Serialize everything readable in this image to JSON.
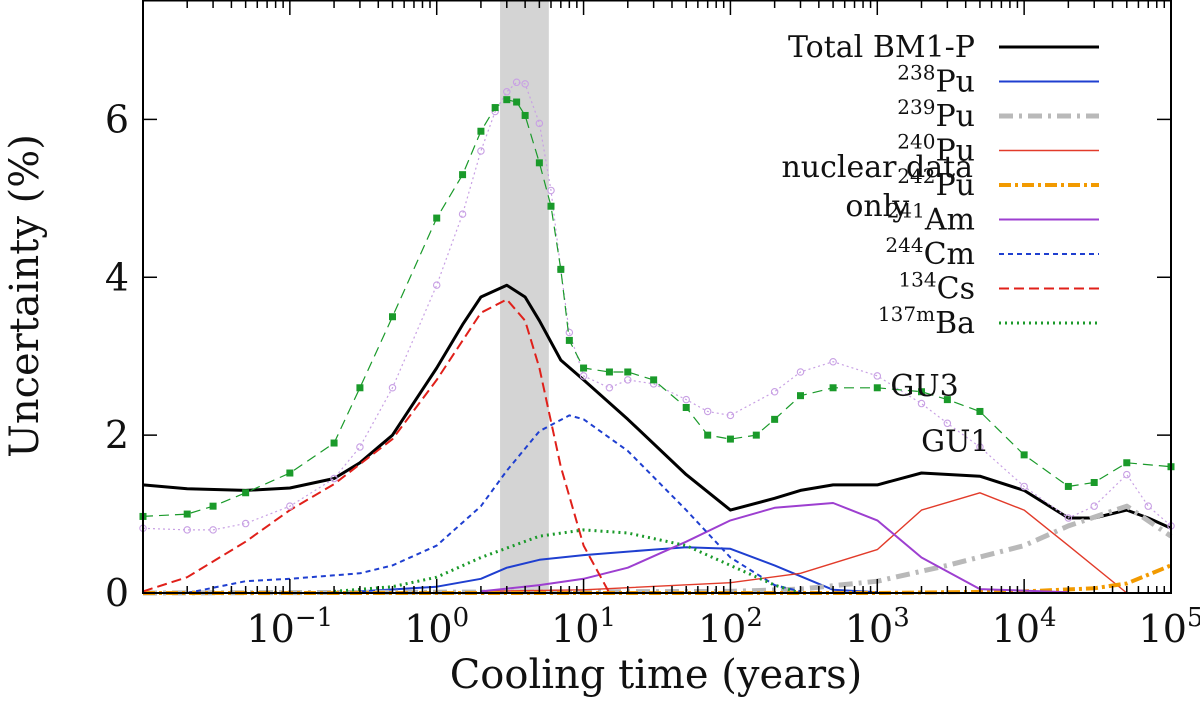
{
  "chart_data": {
    "type": "line",
    "xlabel": "Cooling time (years)",
    "ylabel": "Uncertainty (%)",
    "xscale": "log",
    "xlim": [
      0.01,
      100000
    ],
    "ylim": [
      0,
      7.5
    ],
    "grid": false,
    "legend_position": "top-right",
    "x_tick_labels": [
      {
        "value": 0.1,
        "base": "10",
        "exp": "−1"
      },
      {
        "value": 1,
        "base": "10",
        "exp": "0"
      },
      {
        "value": 10,
        "base": "10",
        "exp": "1"
      },
      {
        "value": 100,
        "base": "10",
        "exp": "2"
      },
      {
        "value": 1000,
        "base": "10",
        "exp": "3"
      },
      {
        "value": 10000,
        "base": "10",
        "exp": "4"
      },
      {
        "value": 100000,
        "base": "10",
        "exp": "5"
      }
    ],
    "y_ticks": [
      0,
      2,
      4,
      6
    ],
    "shaded_band": {
      "x": [
        2.7,
        5.8
      ],
      "color": "#d4d4d4"
    },
    "annotations": [
      {
        "text": "nuclear data",
        "x": 1000,
        "y": 5.4
      },
      {
        "text": "only",
        "x": 1000,
        "y": 4.9
      },
      {
        "text": "GU3",
        "x": 2100,
        "y": 2.62
      },
      {
        "text": "GU1",
        "x": 3400,
        "y": 1.92
      }
    ],
    "series": [
      {
        "name": "Total BM1-P",
        "sup": "",
        "base": "Total BM1-P",
        "color": "#000000",
        "width": 3,
        "dash": "",
        "legend": true,
        "points": [
          [
            0.01,
            1.37
          ],
          [
            0.02,
            1.32
          ],
          [
            0.05,
            1.3
          ],
          [
            0.1,
            1.33
          ],
          [
            0.2,
            1.45
          ],
          [
            0.3,
            1.65
          ],
          [
            0.5,
            2.0
          ],
          [
            1.0,
            2.85
          ],
          [
            1.5,
            3.4
          ],
          [
            2.0,
            3.75
          ],
          [
            3.0,
            3.9
          ],
          [
            4.0,
            3.75
          ],
          [
            5.0,
            3.45
          ],
          [
            7.0,
            2.95
          ],
          [
            10,
            2.7
          ],
          [
            20,
            2.2
          ],
          [
            50,
            1.5
          ],
          [
            100,
            1.05
          ],
          [
            200,
            1.2
          ],
          [
            300,
            1.3
          ],
          [
            500,
            1.37
          ],
          [
            1000,
            1.37
          ],
          [
            2000,
            1.52
          ],
          [
            5000,
            1.48
          ],
          [
            10000,
            1.3
          ],
          [
            20000,
            0.95
          ],
          [
            30000,
            0.95
          ],
          [
            50000,
            1.05
          ],
          [
            70000,
            0.95
          ],
          [
            100000,
            0.82
          ]
        ]
      },
      {
        "name": "238Pu",
        "sup": "238",
        "base": "Pu",
        "color": "#1f3fd0",
        "width": 2,
        "dash": "",
        "legend": true,
        "points": [
          [
            0.3,
            0.02
          ],
          [
            1,
            0.08
          ],
          [
            2,
            0.18
          ],
          [
            3,
            0.32
          ],
          [
            5,
            0.42
          ],
          [
            10,
            0.48
          ],
          [
            30,
            0.55
          ],
          [
            50,
            0.58
          ],
          [
            100,
            0.56
          ],
          [
            200,
            0.35
          ],
          [
            500,
            0.04
          ],
          [
            1000,
            0.01
          ]
        ]
      },
      {
        "name": "239Pu",
        "sup": "239",
        "base": "Pu",
        "color": "#b9b9b9",
        "width": 5,
        "dash": "14 6 3 6",
        "legend": true,
        "points": [
          [
            0.01,
            0.0
          ],
          [
            100,
            0.02
          ],
          [
            300,
            0.05
          ],
          [
            1000,
            0.15
          ],
          [
            3000,
            0.35
          ],
          [
            10000,
            0.6
          ],
          [
            20000,
            0.85
          ],
          [
            50000,
            1.1
          ],
          [
            100000,
            0.72
          ]
        ]
      },
      {
        "name": "240Pu",
        "sup": "240",
        "base": "Pu",
        "color": "#e23b2a",
        "width": 1.4,
        "dash": "",
        "legend": true,
        "points": [
          [
            2,
            0.02
          ],
          [
            10,
            0.04
          ],
          [
            100,
            0.13
          ],
          [
            300,
            0.25
          ],
          [
            1000,
            0.55
          ],
          [
            2000,
            1.05
          ],
          [
            5000,
            1.27
          ],
          [
            10000,
            1.05
          ],
          [
            20000,
            0.6
          ],
          [
            50000,
            0.0
          ]
        ]
      },
      {
        "name": "242Pu",
        "sup": "242",
        "base": "Pu",
        "color": "#f29a00",
        "width": 4,
        "dash": "12 4 3 4",
        "legend": true,
        "points": [
          [
            0.01,
            0.0
          ],
          [
            1000,
            0.0
          ],
          [
            10000,
            0.02
          ],
          [
            30000,
            0.06
          ],
          [
            50000,
            0.12
          ],
          [
            100000,
            0.35
          ]
        ]
      },
      {
        "name": "241Am",
        "sup": "241",
        "base": "Am",
        "color": "#9d3fd0",
        "width": 2,
        "dash": "",
        "legend": true,
        "points": [
          [
            2,
            0.02
          ],
          [
            5,
            0.1
          ],
          [
            10,
            0.18
          ],
          [
            20,
            0.32
          ],
          [
            50,
            0.65
          ],
          [
            100,
            0.92
          ],
          [
            200,
            1.08
          ],
          [
            500,
            1.14
          ],
          [
            1000,
            0.92
          ],
          [
            2000,
            0.45
          ],
          [
            5000,
            0.05
          ],
          [
            20000,
            0.01
          ]
        ]
      },
      {
        "name": "244Cm",
        "sup": "244",
        "base": "Cm",
        "color": "#1f3fd0",
        "width": 2,
        "dash": "5 4",
        "legend": true,
        "points": [
          [
            0.02,
            0.0
          ],
          [
            0.05,
            0.15
          ],
          [
            0.1,
            0.18
          ],
          [
            0.3,
            0.25
          ],
          [
            0.5,
            0.35
          ],
          [
            1,
            0.6
          ],
          [
            2,
            1.1
          ],
          [
            3,
            1.55
          ],
          [
            5,
            2.05
          ],
          [
            8,
            2.25
          ],
          [
            10,
            2.2
          ],
          [
            20,
            1.8
          ],
          [
            50,
            1.05
          ],
          [
            100,
            0.45
          ],
          [
            200,
            0.1
          ],
          [
            300,
            0.02
          ]
        ]
      },
      {
        "name": "134Cs",
        "sup": "134",
        "base": "Cs",
        "color": "#e0201a",
        "width": 2,
        "dash": "10 5",
        "legend": true,
        "points": [
          [
            0.01,
            0.02
          ],
          [
            0.02,
            0.2
          ],
          [
            0.05,
            0.65
          ],
          [
            0.1,
            1.05
          ],
          [
            0.2,
            1.38
          ],
          [
            0.5,
            1.95
          ],
          [
            1,
            2.7
          ],
          [
            2,
            3.55
          ],
          [
            3,
            3.72
          ],
          [
            4,
            3.45
          ],
          [
            5,
            2.85
          ],
          [
            7,
            1.6
          ],
          [
            10,
            0.6
          ],
          [
            15,
            0.0
          ]
        ]
      },
      {
        "name": "137mBa",
        "sup": "137m",
        "base": "Ba",
        "color": "#1a9a2a",
        "width": 3,
        "dash": "2 4",
        "legend": true,
        "points": [
          [
            0.2,
            0.02
          ],
          [
            0.5,
            0.08
          ],
          [
            1,
            0.2
          ],
          [
            2,
            0.45
          ],
          [
            5,
            0.72
          ],
          [
            10,
            0.8
          ],
          [
            20,
            0.76
          ],
          [
            50,
            0.6
          ],
          [
            100,
            0.35
          ],
          [
            200,
            0.1
          ],
          [
            300,
            0.0
          ]
        ]
      },
      {
        "name": "GU3",
        "color": "#c8a0e4",
        "width": 1.2,
        "dash": "2 3",
        "legend": false,
        "marker": "open-circle",
        "points": [
          [
            0.01,
            0.82
          ],
          [
            0.02,
            0.8
          ],
          [
            0.03,
            0.8
          ],
          [
            0.05,
            0.88
          ],
          [
            0.1,
            1.1
          ],
          [
            0.2,
            1.45
          ],
          [
            0.3,
            1.85
          ],
          [
            0.5,
            2.6
          ],
          [
            1,
            3.9
          ],
          [
            1.5,
            4.8
          ],
          [
            2,
            5.6
          ],
          [
            2.5,
            6.1
          ],
          [
            3,
            6.35
          ],
          [
            3.5,
            6.47
          ],
          [
            4,
            6.45
          ],
          [
            5,
            5.95
          ],
          [
            6,
            5.1
          ],
          [
            7,
            4.1
          ],
          [
            8,
            3.3
          ],
          [
            10,
            2.75
          ],
          [
            15,
            2.6
          ],
          [
            20,
            2.7
          ],
          [
            30,
            2.65
          ],
          [
            50,
            2.45
          ],
          [
            70,
            2.3
          ],
          [
            100,
            2.25
          ],
          [
            200,
            2.55
          ],
          [
            300,
            2.8
          ],
          [
            500,
            2.93
          ],
          [
            1000,
            2.75
          ],
          [
            2000,
            2.4
          ],
          [
            3000,
            2.15
          ],
          [
            5000,
            1.85
          ],
          [
            10000,
            1.35
          ],
          [
            20000,
            0.95
          ],
          [
            30000,
            1.1
          ],
          [
            50000,
            1.5
          ],
          [
            70000,
            1.1
          ],
          [
            100000,
            0.85
          ]
        ]
      },
      {
        "name": "GU1",
        "color": "#1a9a2a",
        "width": 1.2,
        "dash": "10 6",
        "legend": false,
        "marker": "filled-square",
        "points": [
          [
            0.01,
            0.97
          ],
          [
            0.02,
            1.0
          ],
          [
            0.03,
            1.1
          ],
          [
            0.05,
            1.27
          ],
          [
            0.1,
            1.52
          ],
          [
            0.2,
            1.9
          ],
          [
            0.3,
            2.6
          ],
          [
            0.5,
            3.5
          ],
          [
            1,
            4.75
          ],
          [
            1.5,
            5.3
          ],
          [
            2,
            5.85
          ],
          [
            2.5,
            6.15
          ],
          [
            3,
            6.25
          ],
          [
            3.5,
            6.22
          ],
          [
            4,
            6.05
          ],
          [
            5,
            5.45
          ],
          [
            6,
            4.9
          ],
          [
            7,
            4.1
          ],
          [
            8,
            3.2
          ],
          [
            10,
            2.85
          ],
          [
            15,
            2.8
          ],
          [
            20,
            2.8
          ],
          [
            30,
            2.7
          ],
          [
            50,
            2.35
          ],
          [
            70,
            2.0
          ],
          [
            100,
            1.95
          ],
          [
            150,
            2.0
          ],
          [
            200,
            2.2
          ],
          [
            300,
            2.5
          ],
          [
            500,
            2.6
          ],
          [
            1000,
            2.6
          ],
          [
            2000,
            2.55
          ],
          [
            3000,
            2.45
          ],
          [
            5000,
            2.3
          ],
          [
            10000,
            1.75
          ],
          [
            20000,
            1.35
          ],
          [
            30000,
            1.4
          ],
          [
            50000,
            1.65
          ],
          [
            100000,
            1.6
          ]
        ]
      }
    ]
  }
}
